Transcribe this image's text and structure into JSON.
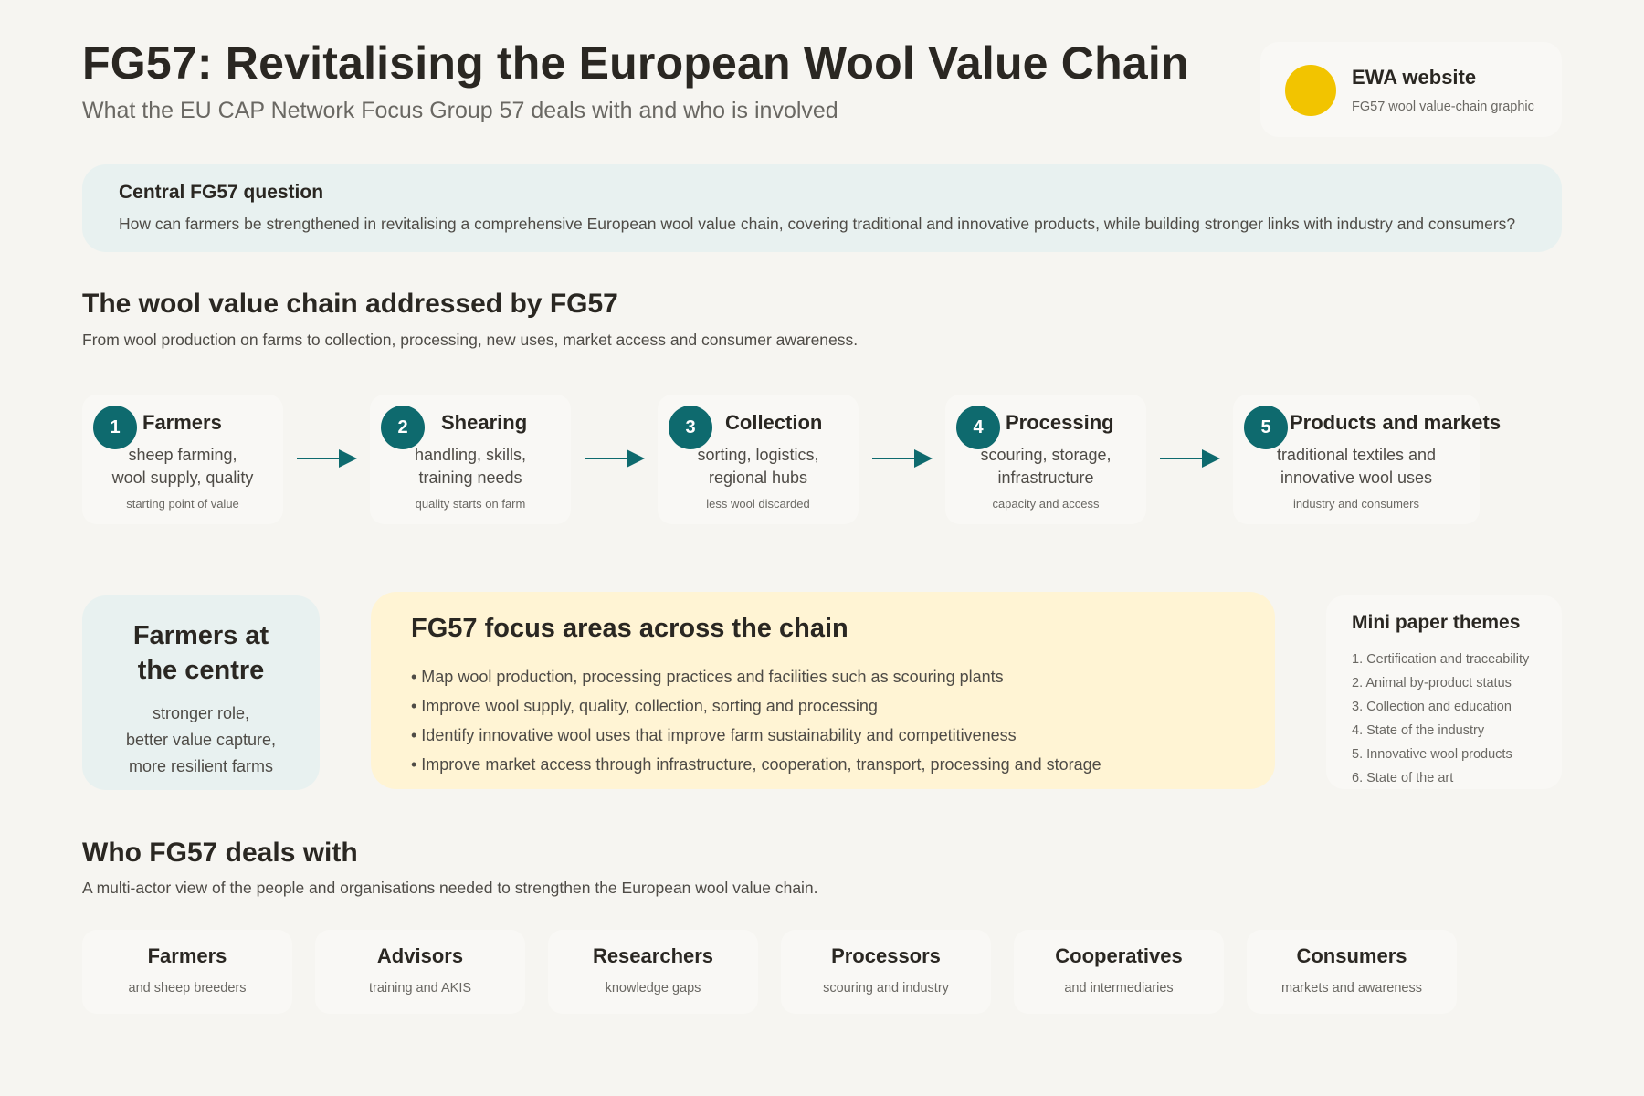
{
  "header": {
    "title": "FG57: Revitalising the European Wool Value Chain",
    "subtitle": "What the EU CAP Network Focus Group 57 deals with and who is involved"
  },
  "source_card": {
    "title": "EWA website",
    "subtitle": "FG57 wool value-chain graphic",
    "dot_color": "#f2c400"
  },
  "question": {
    "title": "Central FG57 question",
    "text": "How can farmers be strengthened in revitalising a comprehensive European wool value chain, covering traditional and innovative products, while building stronger links with industry and consumers?"
  },
  "chain": {
    "title": "The wool value chain addressed by FG57",
    "subtitle": "From wool production on farms to collection, processing, new uses, market access and consumer awareness.",
    "accent_color": "#0e6a6e",
    "steps": [
      {
        "number": "1",
        "title": "Farmers",
        "line1": "sheep farming,",
        "line2": "wool supply, quality",
        "note": "starting point of value"
      },
      {
        "number": "2",
        "title": "Shearing",
        "line1": "handling, skills,",
        "line2": "training needs",
        "note": "quality starts on farm"
      },
      {
        "number": "3",
        "title": "Collection",
        "line1": "sorting, logistics,",
        "line2": "regional hubs",
        "note": "less wool discarded"
      },
      {
        "number": "4",
        "title": "Processing",
        "line1": "scouring, storage,",
        "line2": "infrastructure",
        "note": "capacity and access"
      },
      {
        "number": "5",
        "title": "Products and markets",
        "line1": "traditional textiles and",
        "line2": "innovative wool uses",
        "note": "industry and consumers"
      }
    ]
  },
  "centre": {
    "title_line1": "Farmers at",
    "title_line2": "the centre",
    "text_line1": "stronger role,",
    "text_line2": "better value capture,",
    "text_line3": "more resilient farms"
  },
  "focus": {
    "title": "FG57 focus areas across the chain",
    "items": [
      "• Map wool production, processing practices and facilities such as scouring plants",
      "• Improve wool supply, quality, collection, sorting and processing",
      "• Identify innovative wool uses that improve farm sustainability and competitiveness",
      "• Improve market access through infrastructure, cooperation, transport, processing and storage"
    ]
  },
  "mini_papers": {
    "title": "Mini paper themes",
    "items": [
      "1. Certification and traceability",
      "2. Animal by-product status",
      "3. Collection and education",
      "4. State of the industry",
      "5. Innovative wool products",
      "6. State of the art"
    ]
  },
  "actors": {
    "title": "Who FG57 deals with",
    "subtitle": "A multi-actor view of the people and organisations needed to strengthen the European wool value chain.",
    "items": [
      {
        "name": "Farmers",
        "sub": "and sheep breeders"
      },
      {
        "name": "Advisors",
        "sub": "training and AKIS"
      },
      {
        "name": "Researchers",
        "sub": "knowledge gaps"
      },
      {
        "name": "Processors",
        "sub": "scouring and industry"
      },
      {
        "name": "Cooperatives",
        "sub": "and intermediaries"
      },
      {
        "name": "Consumers",
        "sub": "markets and awareness"
      }
    ]
  }
}
